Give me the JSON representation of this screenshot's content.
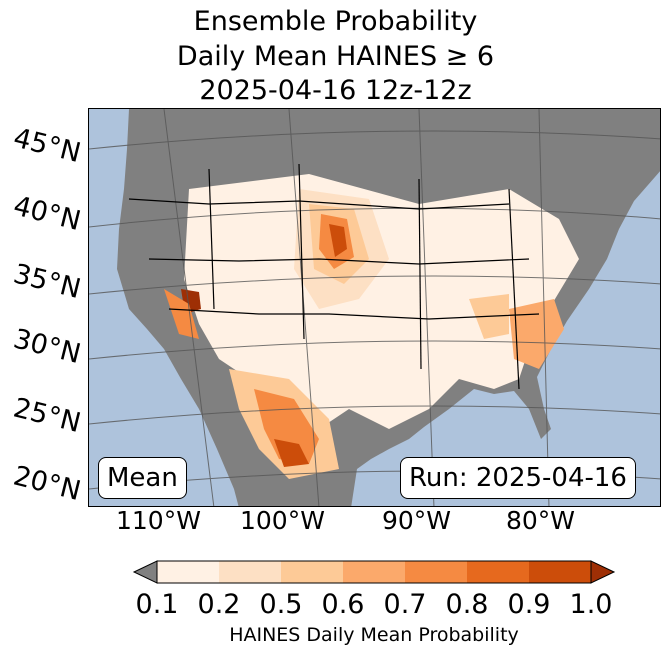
{
  "title": {
    "line1": "Ensemble Probability",
    "line2": "Daily Mean HAINES ≥ 6",
    "line3": "2025-04-16 12z-12z"
  },
  "latitude_labels": [
    "45°N",
    "40°N",
    "35°N",
    "30°N",
    "25°N",
    "20°N"
  ],
  "longitude_labels": [
    "110°W",
    "100°W",
    "90°W",
    "80°W"
  ],
  "stat_label": "Mean",
  "run_label": "Run: 2025-04-16",
  "colorbar": {
    "ticks": [
      "0.1",
      "0.2",
      "0.5",
      "0.6",
      "0.7",
      "0.8",
      "0.9",
      "1.0"
    ],
    "colors": [
      "#fff1e4",
      "#fde0c4",
      "#fdca97",
      "#fba96b",
      "#f58a42",
      "#e6691e",
      "#cc4d0a"
    ],
    "under_color": "#808080",
    "over_color": "#9e2f05",
    "label": "HAINES Daily Mean Probability"
  },
  "colors": {
    "ocean": "#aec3dc",
    "land_below_threshold": "#808080",
    "borders": "#000000"
  }
}
